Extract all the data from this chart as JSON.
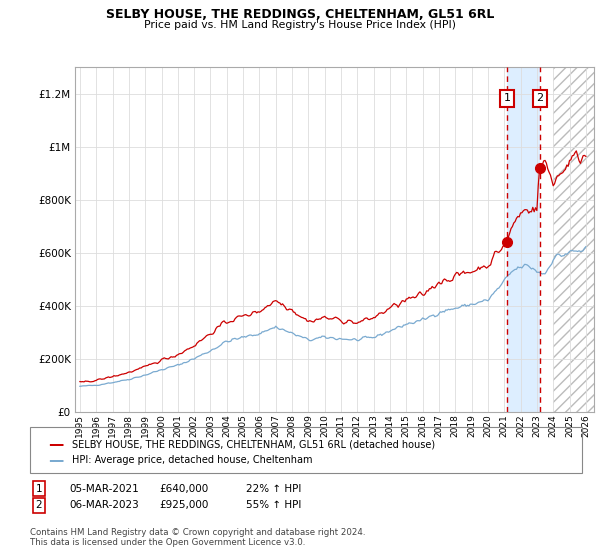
{
  "title": "SELBY HOUSE, THE REDDINGS, CHELTENHAM, GL51 6RL",
  "subtitle": "Price paid vs. HM Land Registry's House Price Index (HPI)",
  "red_label": "SELBY HOUSE, THE REDDINGS, CHELTENHAM, GL51 6RL (detached house)",
  "blue_label": "HPI: Average price, detached house, Cheltenham",
  "sale1_date": "05-MAR-2021",
  "sale1_price": "£640,000",
  "sale1_pct": "22% ↑ HPI",
  "sale2_date": "06-MAR-2023",
  "sale2_price": "£925,000",
  "sale2_pct": "55% ↑ HPI",
  "footer": "Contains HM Land Registry data © Crown copyright and database right 2024.\nThis data is licensed under the Open Government Licence v3.0.",
  "ylim": [
    0,
    1300000
  ],
  "yticks": [
    0,
    200000,
    400000,
    600000,
    800000,
    1000000,
    1200000
  ],
  "ytick_labels": [
    "£0",
    "£200K",
    "£400K",
    "£600K",
    "£800K",
    "£1M",
    "£1.2M"
  ],
  "red_color": "#cc0000",
  "blue_color": "#7aaad0",
  "sale1_x": 2021.17,
  "sale2_x": 2023.17,
  "hatch_start": 2024.0,
  "xlim_left": 1994.7,
  "xlim_right": 2026.5
}
